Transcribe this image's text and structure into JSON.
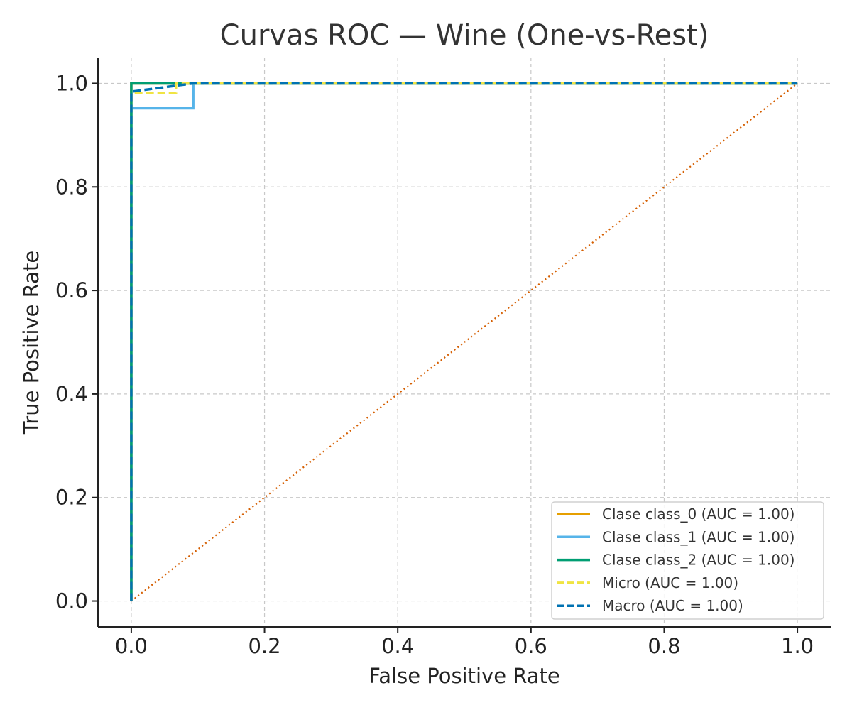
{
  "chart_data": {
    "type": "line",
    "title": "Curvas ROC — Wine (One-vs-Rest)",
    "xlabel": "False Positive Rate",
    "ylabel": "True Positive Rate",
    "xlim": [
      -0.05,
      1.05
    ],
    "ylim": [
      -0.05,
      1.05
    ],
    "xticks": [
      0.0,
      0.2,
      0.4,
      0.6,
      0.8,
      1.0
    ],
    "yticks": [
      0.0,
      0.2,
      0.4,
      0.6,
      0.8,
      1.0
    ],
    "tick_labels": [
      "0.0",
      "0.2",
      "0.4",
      "0.6",
      "0.8",
      "1.0"
    ],
    "grid": true,
    "legend_position": "lower-right",
    "series": [
      {
        "name": "Clase class_0 (AUC = 1.00)",
        "color": "#E69F00",
        "style": "solid",
        "x": [
          0.0,
          0.0,
          1.0
        ],
        "y": [
          0.0,
          1.0,
          1.0
        ]
      },
      {
        "name": "Clase class_1 (AUC = 1.00)",
        "color": "#56B4E9",
        "style": "solid",
        "x": [
          0.0,
          0.0,
          0.093,
          0.093,
          1.0
        ],
        "y": [
          0.0,
          0.952,
          0.952,
          1.0,
          1.0
        ]
      },
      {
        "name": "Clase class_2 (AUC = 1.00)",
        "color": "#009E73",
        "style": "solid",
        "x": [
          0.0,
          0.0,
          1.0
        ],
        "y": [
          0.0,
          1.0,
          1.0
        ]
      },
      {
        "name": "Micro (AUC = 1.00)",
        "color": "#F0E442",
        "style": "dashed",
        "x": [
          0.0,
          0.0,
          0.067,
          0.067,
          1.0
        ],
        "y": [
          0.0,
          0.981,
          0.981,
          1.0,
          1.0
        ]
      },
      {
        "name": "Macro (AUC = 1.00)",
        "color": "#0072B2",
        "style": "dashed",
        "x": [
          0.0,
          0.0,
          0.093,
          1.0
        ],
        "y": [
          0.0,
          0.984,
          1.0,
          1.0
        ]
      }
    ],
    "reference_line": {
      "color": "#D55E00",
      "style": "dotted",
      "x": [
        0.0,
        1.0
      ],
      "y": [
        0.0,
        1.0
      ]
    }
  }
}
